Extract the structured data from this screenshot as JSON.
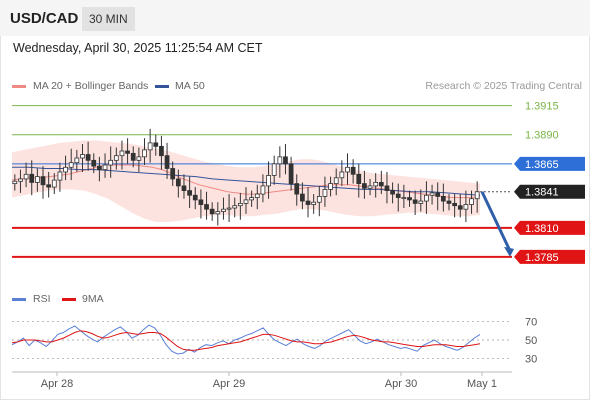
{
  "header": {
    "symbol": "USD/CAD",
    "timeframe": "30 MIN"
  },
  "datetime": "Wednesday, April 30, 2025 11:25:54 AM CET",
  "legend": [
    {
      "label": "MA 20 + Bollinger Bands",
      "color": "#f08a84"
    },
    {
      "label": "MA 50",
      "color": "#34549a"
    }
  ],
  "credit": "Research © 2025 Trading Central",
  "rsi_legend": [
    {
      "label": "RSI",
      "color": "#5b80d6"
    },
    {
      "label": "9MA",
      "color": "#e01414"
    }
  ],
  "chart_data": {
    "type": "line",
    "title": "USD/CAD",
    "x_ticks": [
      "Apr 28",
      "Apr 29",
      "Apr 30",
      "May 1"
    ],
    "price_range": [
      1.376,
      1.3925
    ],
    "levels": [
      {
        "value": 1.3915,
        "label": "1.3915",
        "kind": "resistance",
        "color": "#7ab648"
      },
      {
        "value": 1.389,
        "label": "1.3890",
        "kind": "resistance",
        "color": "#7ab648"
      },
      {
        "value": 1.3865,
        "label": "1.3865",
        "kind": "pivot",
        "color": "#2d6fd6"
      },
      {
        "value": 1.3841,
        "label": "1.3841",
        "kind": "last price",
        "color": "#222222"
      },
      {
        "value": 1.381,
        "label": "1.3810",
        "kind": "support",
        "color": "#e01414"
      },
      {
        "value": 1.3785,
        "label": "1.3785",
        "kind": "support",
        "color": "#e01414"
      }
    ],
    "close_series": [
      1.385,
      1.3852,
      1.3856,
      1.3849,
      1.3854,
      1.3847,
      1.3845,
      1.3851,
      1.3858,
      1.3862,
      1.3866,
      1.387,
      1.3873,
      1.3868,
      1.3863,
      1.386,
      1.3864,
      1.3868,
      1.3872,
      1.3876,
      1.3874,
      1.3868,
      1.3871,
      1.3877,
      1.3883,
      1.388,
      1.3872,
      1.3861,
      1.3852,
      1.3846,
      1.3842,
      1.3838,
      1.3834,
      1.383,
      1.3826,
      1.3822,
      1.3824,
      1.3826,
      1.3827,
      1.3829,
      1.3831,
      1.3834,
      1.3836,
      1.3839,
      1.3846,
      1.3855,
      1.3865,
      1.3871,
      1.3865,
      1.3848,
      1.3839,
      1.3833,
      1.383,
      1.3832,
      1.3837,
      1.3843,
      1.3848,
      1.3853,
      1.3858,
      1.3862,
      1.3856,
      1.3848,
      1.3844,
      1.3846,
      1.3849,
      1.3846,
      1.3842,
      1.3839,
      1.3836,
      1.3836,
      1.3834,
      1.3831,
      1.3833,
      1.3838,
      1.384,
      1.3837,
      1.3833,
      1.3831,
      1.3829,
      1.3826,
      1.383,
      1.3835,
      1.3841
    ],
    "ma20": [
      1.3851,
      1.3852,
      1.3853,
      1.3853,
      1.3854,
      1.3855,
      1.3856,
      1.3858,
      1.386,
      1.3862,
      1.3864,
      1.3864,
      1.3864,
      1.3864,
      1.3863,
      1.3862,
      1.386,
      1.3857,
      1.3853,
      1.385,
      1.3847,
      1.3845,
      1.3843,
      1.3841,
      1.384,
      1.3839,
      1.3839,
      1.384,
      1.3841,
      1.3842,
      1.3843,
      1.3844,
      1.3845,
      1.3846,
      1.3847,
      1.3847,
      1.3847,
      1.3846,
      1.3845,
      1.3844,
      1.3843,
      1.3842,
      1.3841,
      1.384,
      1.3839,
      1.3838,
      1.3837,
      1.3836,
      1.3836,
      1.3836,
      1.3837
    ],
    "ma50": [
      1.3862,
      1.3862,
      1.3861,
      1.3861,
      1.386,
      1.386,
      1.3859,
      1.3858,
      1.3857,
      1.3856,
      1.3855,
      1.3854,
      1.3852,
      1.3851,
      1.385,
      1.3849,
      1.3848,
      1.3847,
      1.3846,
      1.3845,
      1.3844,
      1.3843,
      1.3843,
      1.3842,
      1.3841,
      1.3841,
      1.384,
      1.3839,
      1.3838
    ],
    "bb_upper": [
      1.3875,
      1.3877,
      1.3879,
      1.3881,
      1.3883,
      1.3884,
      1.3885,
      1.3885,
      1.3884,
      1.3883,
      1.3882,
      1.388,
      1.3878,
      1.3876,
      1.3873,
      1.387,
      1.3867,
      1.3865,
      1.3863,
      1.3862,
      1.3862,
      1.3863,
      1.3865,
      1.3867,
      1.3869,
      1.3869,
      1.3867,
      1.3864,
      1.3861,
      1.3859,
      1.3857,
      1.3856,
      1.3855,
      1.3854,
      1.3853,
      1.3852,
      1.3851,
      1.385,
      1.3849,
      1.3848
    ],
    "bb_lower": [
      1.3836,
      1.3838,
      1.384,
      1.3842,
      1.3843,
      1.3843,
      1.3842,
      1.3839,
      1.3835,
      1.3829,
      1.3823,
      1.3818,
      1.3815,
      1.3815,
      1.3816,
      1.3818,
      1.382,
      1.3821,
      1.3821,
      1.382,
      1.382,
      1.3821,
      1.3822,
      1.3824,
      1.3826,
      1.3826,
      1.3825,
      1.3823,
      1.3821,
      1.382,
      1.382,
      1.3821,
      1.3822,
      1.3823,
      1.3823,
      1.3822,
      1.3821,
      1.382,
      1.382,
      1.3821
    ],
    "forecast": {
      "from": 1.3841,
      "to": 1.3785
    },
    "rsi": {
      "range": [
        20,
        80
      ],
      "ticks": [
        70,
        50,
        30
      ],
      "rsi_series": [
        45,
        48,
        52,
        44,
        50,
        47,
        43,
        49,
        56,
        58,
        62,
        65,
        60,
        55,
        51,
        48,
        53,
        57,
        61,
        64,
        59,
        52,
        55,
        61,
        66,
        63,
        55,
        45,
        38,
        35,
        36,
        40,
        37,
        42,
        45,
        44,
        47,
        49,
        46,
        50,
        52,
        55,
        57,
        60,
        63,
        56,
        50,
        47,
        44,
        48,
        51,
        46,
        43,
        41,
        44,
        49,
        52,
        55,
        58,
        61,
        55,
        49,
        46,
        48,
        51,
        48,
        45,
        43,
        41,
        42,
        40,
        38,
        44,
        47,
        50,
        46,
        43,
        41,
        39,
        42,
        47,
        52,
        56
      ],
      "ma9_series": [
        47,
        48,
        50,
        50,
        50,
        49,
        48,
        48,
        50,
        52,
        55,
        58,
        60,
        59,
        57,
        54,
        52,
        53,
        55,
        57,
        58,
        57,
        56,
        57,
        58,
        58,
        57,
        53,
        48,
        43,
        40,
        39,
        39,
        40,
        41,
        42,
        44,
        45,
        46,
        47,
        48,
        50,
        52,
        54,
        56,
        56,
        55,
        53,
        51,
        49,
        48,
        48,
        47,
        46,
        46,
        47,
        48,
        50,
        52,
        54,
        55,
        54,
        52,
        50,
        49,
        48,
        48,
        47,
        46,
        45,
        44,
        43,
        43,
        44,
        45,
        45,
        45,
        44,
        43,
        43,
        44,
        45,
        46
      ]
    }
  }
}
